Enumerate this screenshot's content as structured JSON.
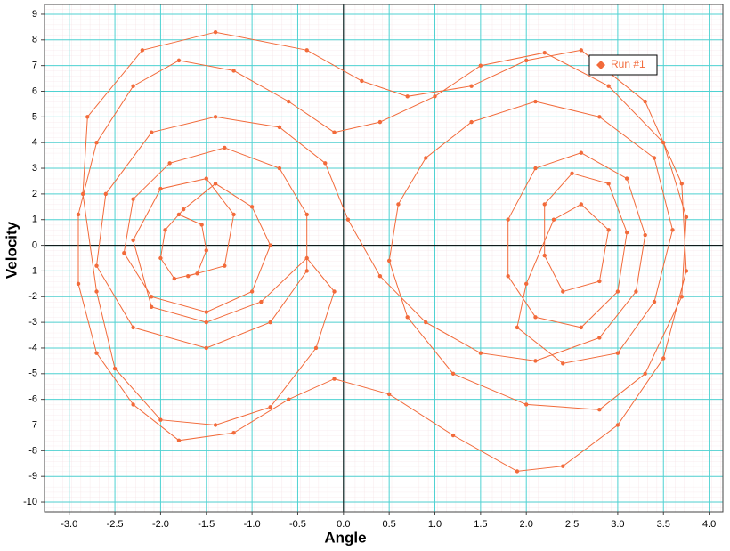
{
  "chart_data": {
    "type": "line",
    "x_label": "Angle",
    "y_label": "Velocity",
    "xlim": [
      -3.27,
      4.15
    ],
    "ylim": [
      -10.38,
      9.38
    ],
    "xticks": [
      {
        "value": -3,
        "label": "-3.0"
      },
      -2.5,
      {
        "value": -2,
        "label": "-2.0"
      },
      -1.5,
      {
        "value": -1,
        "label": "-1.0"
      },
      -0.5,
      {
        "value": 0,
        "label": "0.0"
      },
      0.5,
      {
        "value": 1,
        "label": "1.0"
      },
      1.5,
      {
        "value": 2,
        "label": "2.0"
      },
      2.5,
      {
        "value": 3,
        "label": "3.0"
      },
      3.5,
      {
        "value": 4,
        "label": "4.0"
      }
    ],
    "yticks": [
      -10,
      -9,
      -8,
      -7,
      -6,
      -5,
      -4,
      -3,
      -2,
      -1,
      0,
      1,
      2,
      3,
      4,
      5,
      6,
      7,
      8,
      9
    ],
    "grid": true,
    "legend": "upper right",
    "series": [
      {
        "name": "Run #1",
        "color": "#f26a3a",
        "x": [
          -1.8,
          -1.55,
          -1.5,
          -1.6,
          -1.85,
          -2.0,
          -1.95,
          -1.75,
          -1.4,
          -1.0,
          -0.8,
          -1.0,
          -1.5,
          -2.1,
          -2.4,
          -2.3,
          -1.9,
          -1.3,
          -0.7,
          -0.4,
          -0.4,
          -0.8,
          -1.5,
          -2.3,
          -2.7,
          -2.6,
          -2.1,
          -1.4,
          -0.7,
          -0.2,
          0.05,
          0.4,
          0.9,
          1.5,
          2.1,
          2.8,
          3.2,
          3.3,
          3.1,
          2.6,
          2.1,
          1.8,
          1.8,
          2.1,
          2.6,
          3.0,
          3.1,
          2.9,
          2.5,
          2.2,
          2.2,
          2.4,
          2.8,
          2.9,
          2.6,
          2.3,
          2.0,
          1.9,
          2.4,
          3.0,
          3.4,
          3.6,
          3.4,
          2.8,
          2.1,
          1.4,
          0.9,
          0.6,
          0.5,
          0.7,
          1.2,
          2.0,
          2.8,
          3.3,
          3.7,
          3.75,
          3.5,
          2.9,
          2.2,
          1.5,
          1.0,
          0.4,
          -0.1,
          -0.6,
          -1.2,
          -1.8,
          -2.3,
          -2.7,
          -2.9,
          -2.9,
          -2.7,
          -2.3,
          -1.8,
          -1.2,
          -0.6,
          -0.1,
          0.5,
          1.2,
          1.9,
          2.4,
          3.0,
          3.5,
          3.75,
          3.7,
          3.3,
          2.6,
          2.0,
          1.4,
          0.7,
          0.2,
          -0.4,
          -1.4,
          -2.2,
          -2.8,
          -2.85,
          -2.7,
          -2.5,
          -2.0,
          -1.4,
          -0.8,
          -0.3,
          -0.1,
          -0.4,
          -0.9,
          -1.5,
          -2.1,
          -2.3,
          -2.0,
          -1.5,
          -1.2,
          -1.3,
          -1.7
        ],
        "values": [
          1.2,
          0.8,
          -0.2,
          -1.1,
          -1.3,
          -0.5,
          0.6,
          1.4,
          2.4,
          1.5,
          0,
          -1.8,
          -2.6,
          -2.0,
          -0.3,
          1.8,
          3.2,
          3.8,
          3.0,
          1.2,
          -1.0,
          -3.0,
          -4.0,
          -3.2,
          -0.8,
          2.0,
          4.4,
          5.0,
          4.6,
          3.2,
          1.0,
          -1.2,
          -3.0,
          -4.2,
          -4.5,
          -3.6,
          -1.8,
          0.4,
          2.6,
          3.6,
          3.0,
          1.0,
          -1.2,
          -2.8,
          -3.2,
          -1.8,
          0.5,
          2.4,
          2.8,
          1.6,
          -0.4,
          -1.8,
          -1.4,
          0.6,
          1.6,
          1.0,
          -1.5,
          -3.2,
          -4.6,
          -4.2,
          -2.2,
          0.6,
          3.4,
          5.0,
          5.6,
          4.8,
          3.4,
          1.6,
          -0.6,
          -2.8,
          -5.0,
          -6.2,
          -6.4,
          -5.0,
          -2.0,
          1.1,
          4.0,
          6.2,
          7.5,
          7.0,
          5.8,
          4.8,
          4.4,
          5.6,
          6.8,
          7.2,
          6.2,
          4.0,
          1.2,
          -1.5,
          -4.2,
          -6.2,
          -7.6,
          -7.3,
          -6.0,
          -5.2,
          -5.8,
          -7.4,
          -8.8,
          -8.6,
          -7.0,
          -4.4,
          -1.0,
          2.4,
          5.6,
          7.6,
          7.2,
          6.2,
          5.8,
          6.4,
          7.6,
          8.3,
          7.6,
          5.0,
          2.0,
          -1.8,
          -4.8,
          -6.8,
          -7.0,
          -6.3,
          -4.0,
          -1.8,
          -0.5,
          -2.2,
          -3.0,
          -2.4,
          0.2,
          2.2,
          2.6,
          1.2,
          -0.8,
          -1.2
        ]
      }
    ]
  }
}
